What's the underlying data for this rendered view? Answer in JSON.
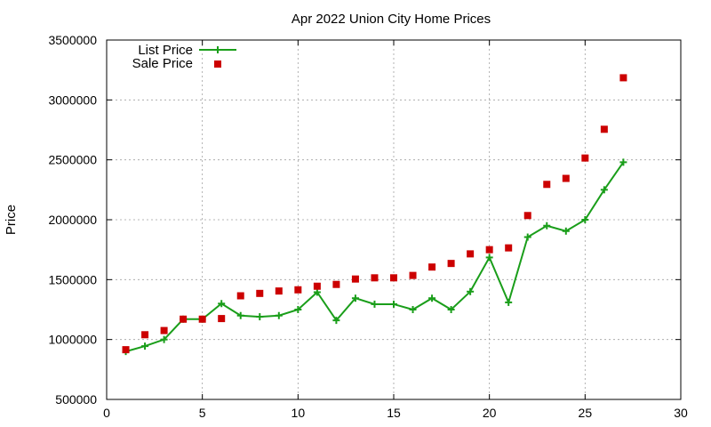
{
  "chart_data": {
    "type": "line",
    "title": "Apr 2022 Union City Home Prices",
    "xlabel": "",
    "ylabel": "Price",
    "xlim": [
      0,
      30
    ],
    "ylim": [
      500000,
      3500000
    ],
    "xticks": [
      0,
      5,
      10,
      15,
      20,
      25,
      30
    ],
    "yticks": [
      500000,
      1000000,
      1500000,
      2000000,
      2500000,
      3000000,
      3500000
    ],
    "grid": true,
    "legend_position": "top-left",
    "series": [
      {
        "name": "List Price",
        "style": "line-with-plus-markers",
        "color": "#1a9e1a",
        "x": [
          1,
          2,
          3,
          4,
          5,
          6,
          7,
          8,
          9,
          10,
          11,
          12,
          13,
          14,
          15,
          16,
          17,
          18,
          19,
          20,
          21,
          22,
          23,
          24,
          25,
          26,
          27
        ],
        "values": [
          900000,
          945000,
          1000000,
          1170000,
          1170000,
          1300000,
          1200000,
          1190000,
          1200000,
          1250000,
          1395000,
          1160000,
          1345000,
          1295000,
          1295000,
          1250000,
          1345000,
          1250000,
          1400000,
          1685000,
          1310000,
          1855000,
          1950000,
          1905000,
          2000000,
          2250000,
          2480000
        ]
      },
      {
        "name": "Sale Price",
        "style": "square-markers",
        "color": "#cc0000",
        "x": [
          1,
          2,
          3,
          4,
          5,
          6,
          7,
          8,
          9,
          10,
          11,
          12,
          13,
          14,
          15,
          16,
          17,
          18,
          19,
          20,
          21,
          22,
          23,
          24,
          25,
          26,
          27
        ],
        "values": [
          915000,
          1040000,
          1075000,
          1170000,
          1170000,
          1175000,
          1365000,
          1385000,
          1405000,
          1415000,
          1445000,
          1460000,
          1505000,
          1515000,
          1515000,
          1535000,
          1605000,
          1635000,
          1715000,
          1750000,
          1765000,
          2035000,
          2295000,
          2345000,
          2515000,
          2755000,
          3185000
        ]
      }
    ]
  }
}
